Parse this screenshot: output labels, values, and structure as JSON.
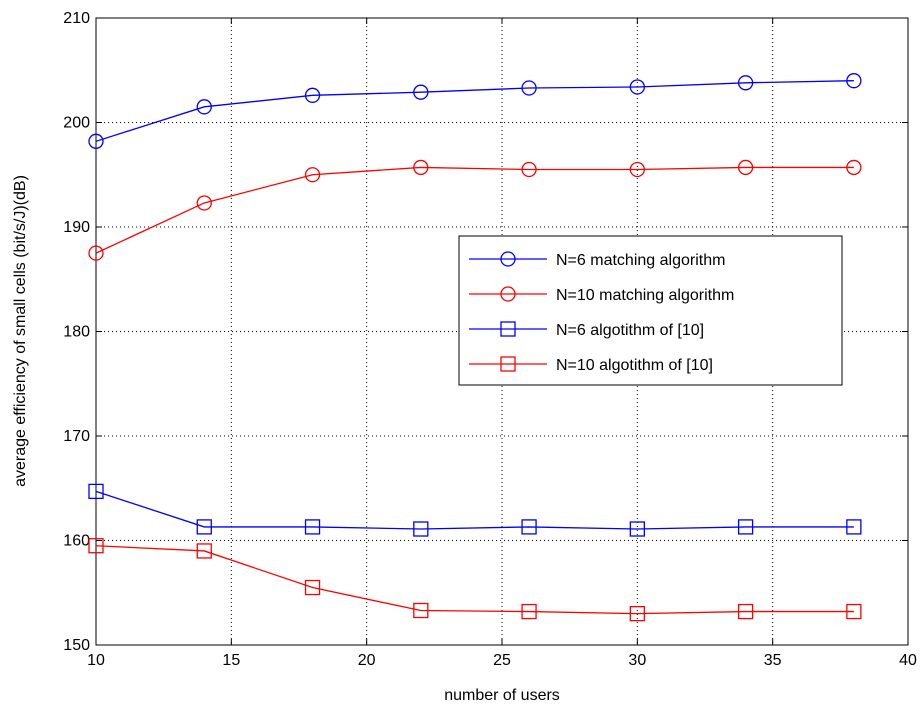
{
  "chart_data": {
    "type": "line",
    "title": "",
    "xlabel": "number of users",
    "ylabel": "average efficiency of small cells (bit/s/J)(dB)",
    "xlim": [
      10,
      40
    ],
    "ylim": [
      150,
      210
    ],
    "xticks": [
      10,
      15,
      20,
      25,
      30,
      35,
      40
    ],
    "yticks": [
      150,
      160,
      170,
      180,
      190,
      200,
      210
    ],
    "grid": true,
    "legend_position": "center-right",
    "x": [
      10,
      14,
      18,
      22,
      26,
      30,
      34,
      38
    ],
    "series": [
      {
        "name": "N=6 matching algorithm",
        "color": "#0000ff",
        "marker": "circle",
        "values": [
          198.2,
          201.5,
          202.6,
          202.9,
          203.3,
          203.4,
          203.8,
          204.0
        ]
      },
      {
        "name": "N=10 matching algorithm",
        "color": "#ff0000",
        "marker": "circle",
        "values": [
          187.5,
          192.3,
          195.0,
          195.7,
          195.5,
          195.5,
          195.7,
          195.7
        ]
      },
      {
        "name": "N=6 algotithm of [10]",
        "color": "#0000ff",
        "marker": "square",
        "values": [
          164.7,
          161.3,
          161.3,
          161.1,
          161.3,
          161.1,
          161.3,
          161.3
        ]
      },
      {
        "name": "N=10 algotithm of [10]",
        "color": "#ff0000",
        "marker": "square",
        "values": [
          159.5,
          159.0,
          155.5,
          153.3,
          153.2,
          153.0,
          153.2,
          153.2
        ]
      }
    ]
  }
}
